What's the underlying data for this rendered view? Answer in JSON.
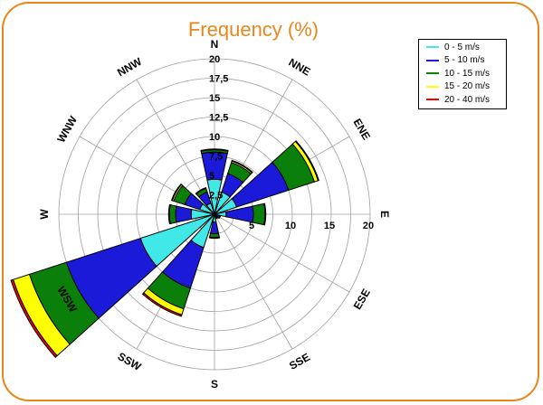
{
  "chart_data": {
    "type": "wind-rose",
    "title": "Frequency (%)",
    "directions": [
      "N",
      "NNE",
      "ENE",
      "E",
      "ESE",
      "SSE",
      "S",
      "SSW",
      "WSW",
      "W",
      "WNW",
      "NNW"
    ],
    "direction_angles_deg": [
      0,
      30,
      60,
      90,
      120,
      150,
      180,
      210,
      240,
      270,
      300,
      330
    ],
    "radial_ticks": [
      "2,5",
      "5",
      "7,5",
      "10",
      "12,5",
      "15",
      "17,5",
      "20"
    ],
    "radial_ticks_east": [
      "5",
      "10",
      "15",
      "20"
    ],
    "radial_values": [
      2.5,
      5,
      7.5,
      10,
      12.5,
      15,
      17.5,
      20
    ],
    "rmax": 20,
    "series": [
      {
        "name": "0 - 5 m/s",
        "color": "#40e8e8",
        "values": [
          4.5,
          3.0,
          3.0,
          1.5,
          0.3,
          0.3,
          1.0,
          4.5,
          10.0,
          3.0,
          2.0,
          1.5
        ]
      },
      {
        "name": "5 - 10 m/s",
        "color": "#1a1ad8",
        "values": [
          3.5,
          2.5,
          7.0,
          3.5,
          0.4,
          0.2,
          1.5,
          5.5,
          10.0,
          2.0,
          2.0,
          1.5
        ]
      },
      {
        "name": "10 - 15 m/s",
        "color": "#0a800a",
        "values": [
          0.3,
          1.5,
          3.5,
          1.5,
          0.1,
          0.1,
          0.5,
          2.8,
          5.0,
          0.8,
          1.5,
          0.5
        ]
      },
      {
        "name": "15 - 20 m/s",
        "color": "#ffff00",
        "values": [
          0.1,
          0.2,
          0.5,
          0.1,
          0.0,
          0.0,
          0.1,
          0.8,
          2.2,
          0.1,
          0.2,
          0.1
        ]
      },
      {
        "name": "20 - 40 m/s",
        "color": "#ff0000",
        "values": [
          0.0,
          0.1,
          0.1,
          0.0,
          0.0,
          0.0,
          0.0,
          0.2,
          0.3,
          0.0,
          0.1,
          0.0
        ]
      }
    ],
    "legend_position": "top-right",
    "grid": true
  }
}
